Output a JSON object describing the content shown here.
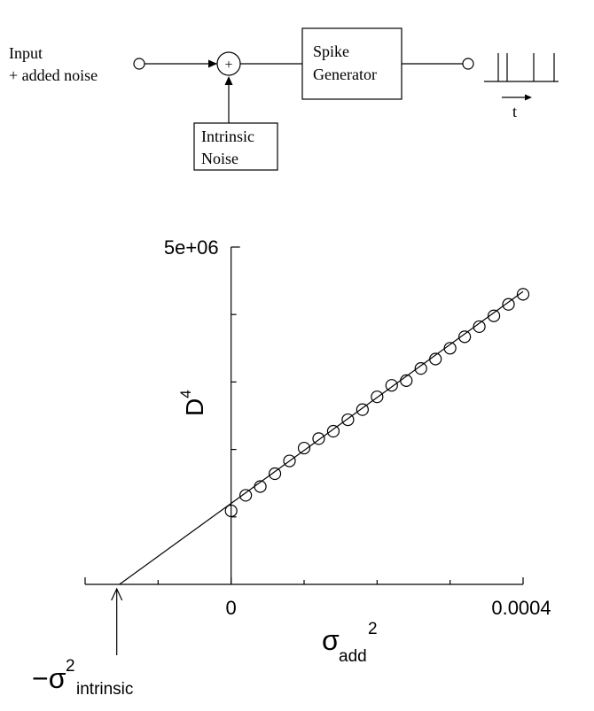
{
  "diagram": {
    "input_label_line1": "Input",
    "input_label_line2": "+ added noise",
    "summer_symbol": "+",
    "generator_line1": "Spike",
    "generator_line2": "Generator",
    "noise_line1": "Intrinsic",
    "noise_line2": "Noise",
    "time_label": "t"
  },
  "chart_data": {
    "type": "scatter",
    "ylabel_base": "D",
    "ylabel_sup": "4",
    "xlabel_base": "σ",
    "xlabel_sub": "add",
    "xlabel_sup": "2",
    "x_tick_labels": [
      "0",
      "0.0004"
    ],
    "y_tick_labels": [
      "5e+06"
    ],
    "intercept_label_prefix": "−σ",
    "intercept_label_sup": "2",
    "intercept_label_sub": "intrinsic",
    "xlim": [
      -0.0002,
      0.0004
    ],
    "ylim": [
      0,
      5000000
    ],
    "x_minor_step": 0.0001,
    "y_minor_step": 1000000,
    "points": {
      "x": [
        0,
        2e-05,
        4e-05,
        6e-05,
        8e-05,
        0.0001,
        0.00012,
        0.00014,
        0.00016,
        0.00018,
        0.0002,
        0.00022,
        0.00024,
        0.00026,
        0.00028,
        0.0003,
        0.00032,
        0.00034,
        0.00036,
        0.00038,
        0.0004
      ],
      "y": [
        1090000,
        1320000,
        1450000,
        1640000,
        1830000,
        2020000,
        2160000,
        2270000,
        2440000,
        2590000,
        2780000,
        2950000,
        3020000,
        3200000,
        3340000,
        3500000,
        3670000,
        3820000,
        3980000,
        4150000,
        4300000
      ]
    },
    "fit_line": {
      "x": [
        -0.000153,
        0.0004
      ],
      "y": [
        0,
        4340000
      ]
    },
    "intercept_x": -0.000153
  }
}
